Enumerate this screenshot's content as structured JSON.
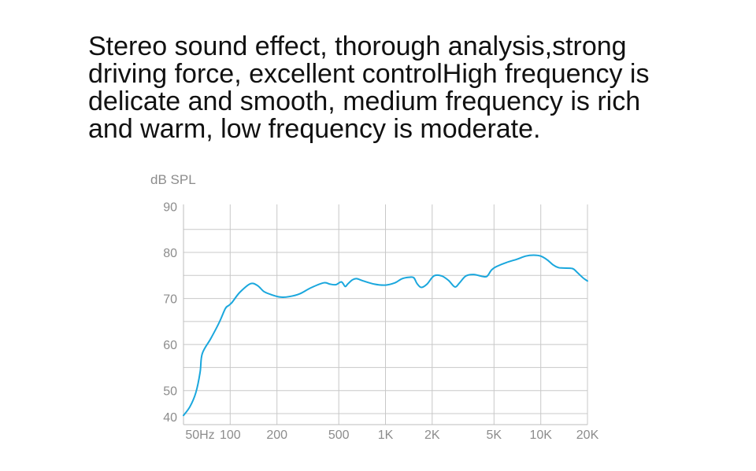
{
  "headline": {
    "lines": [
      "Stereo sound effect, thorough analysis,strong",
      "driving force, excellent controlHigh frequency is",
      "delicate and smooth, medium frequency is rich",
      "and warm, low frequency is moderate."
    ]
  },
  "chart_data": {
    "type": "line",
    "title": "",
    "ylabel": "dB SPL",
    "xlabel": "",
    "x_scale": "log",
    "xlim": [
      50,
      20000
    ],
    "ylim": [
      40,
      92
    ],
    "grid": true,
    "x_ticks": [
      {
        "value": 50,
        "label": "50Hz"
      },
      {
        "value": 100,
        "label": "100"
      },
      {
        "value": 200,
        "label": "200"
      },
      {
        "value": 500,
        "label": "500"
      },
      {
        "value": 1000,
        "label": "1K"
      },
      {
        "value": 2000,
        "label": "2K"
      },
      {
        "value": 5000,
        "label": "5K"
      },
      {
        "value": 10000,
        "label": "10K"
      },
      {
        "value": 20000,
        "label": "20K"
      }
    ],
    "y_ticks": [
      {
        "value": 40,
        "label": "40"
      },
      {
        "value": 50,
        "label": "50"
      },
      {
        "value": 60,
        "label": "60"
      },
      {
        "value": 70,
        "label": "70"
      },
      {
        "value": 80,
        "label": "80"
      },
      {
        "value": 90,
        "label": "90"
      }
    ],
    "series": [
      {
        "color": "#1aa7dd",
        "x": [
          50,
          55,
          60,
          64,
          66,
          75,
          85,
          93,
          98,
          103,
          115,
          135,
          150,
          165,
          185,
          210,
          240,
          280,
          330,
          400,
          440,
          480,
          520,
          550,
          570,
          610,
          650,
          720,
          850,
          1000,
          1150,
          1280,
          1420,
          1520,
          1600,
          1700,
          1850,
          2050,
          2300,
          2550,
          2800,
          3000,
          3300,
          3700,
          4200,
          4500,
          4800,
          5100,
          6000,
          7000,
          8000,
          9000,
          10000,
          11000,
          12000,
          13000,
          14000,
          16000,
          17000,
          18000,
          19000,
          20000
        ],
        "y": [
          44.6,
          46.5,
          49.5,
          54,
          58,
          61.3,
          64.8,
          67.8,
          68.5,
          69.2,
          71.3,
          73.2,
          72.8,
          71.5,
          70.8,
          70.3,
          70.4,
          71,
          72.3,
          73.4,
          73.1,
          73,
          73.6,
          72.6,
          73.1,
          74,
          74.3,
          73.8,
          73.1,
          72.9,
          73.4,
          74.3,
          74.6,
          74.5,
          73.2,
          72.4,
          73.1,
          74.9,
          74.9,
          73.9,
          72.5,
          73.4,
          74.9,
          75.2,
          74.8,
          74.8,
          76.1,
          76.8,
          77.8,
          78.5,
          79.2,
          79.4,
          79.2,
          78.4,
          77.3,
          76.7,
          76.6,
          76.5,
          75.8,
          75,
          74.3,
          73.8
        ]
      }
    ]
  }
}
